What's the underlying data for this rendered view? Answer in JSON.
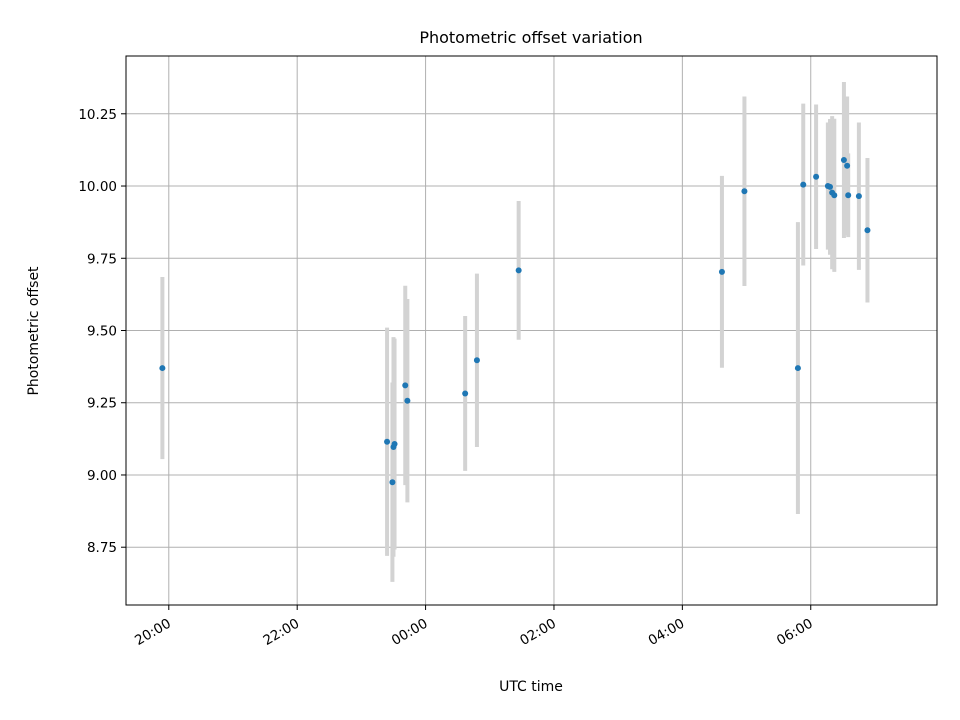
{
  "chart_data": {
    "type": "scatter",
    "title": "Photometric offset variation",
    "xlabel": "UTC time",
    "ylabel": "Photometric offset",
    "grid": true,
    "error_bars": true,
    "x_axis": {
      "kind": "time",
      "range": [
        "19:20",
        "07:58"
      ],
      "ticks": [
        "20:00",
        "22:00",
        "00:00",
        "02:00",
        "04:00",
        "06:00"
      ]
    },
    "y_axis": {
      "range": [
        8.55,
        10.45
      ],
      "ticks": [
        "8.75",
        "9.00",
        "9.25",
        "9.50",
        "9.75",
        "10.00",
        "10.25"
      ]
    },
    "colors": {
      "point": "#1f77b4",
      "error_bar": "#d3d3d3",
      "grid": "#b0b0b0"
    },
    "points": [
      {
        "x": "19:54",
        "y": 9.37,
        "err": 0.315
      },
      {
        "x": "23:24",
        "y": 9.115,
        "err": 0.395
      },
      {
        "x": "23:29",
        "y": 8.975,
        "err": 0.345
      },
      {
        "x": "23:30",
        "y": 9.097,
        "err": 0.38
      },
      {
        "x": "23:31",
        "y": 9.107,
        "err": 0.365
      },
      {
        "x": "23:41",
        "y": 9.31,
        "err": 0.345
      },
      {
        "x": "23:43",
        "y": 9.257,
        "err": 0.352
      },
      {
        "x": "00:37",
        "y": 9.282,
        "err": 0.268
      },
      {
        "x": "00:48",
        "y": 9.397,
        "err": 0.3
      },
      {
        "x": "01:27",
        "y": 9.708,
        "err": 0.24
      },
      {
        "x": "04:37",
        "y": 9.703,
        "err": 0.332
      },
      {
        "x": "04:58",
        "y": 9.982,
        "err": 0.328
      },
      {
        "x": "05:48",
        "y": 9.37,
        "err": 0.505
      },
      {
        "x": "05:53",
        "y": 10.005,
        "err": 0.28
      },
      {
        "x": "06:05",
        "y": 10.032,
        "err": 0.25
      },
      {
        "x": "06:16",
        "y": 10.0,
        "err": 0.22
      },
      {
        "x": "06:18",
        "y": 9.997,
        "err": 0.235
      },
      {
        "x": "06:20",
        "y": 9.977,
        "err": 0.265
      },
      {
        "x": "06:22",
        "y": 9.968,
        "err": 0.265
      },
      {
        "x": "06:31",
        "y": 10.09,
        "err": 0.27
      },
      {
        "x": "06:34",
        "y": 10.07,
        "err": 0.24
      },
      {
        "x": "06:35",
        "y": 9.968,
        "err": 0.145
      },
      {
        "x": "06:45",
        "y": 9.965,
        "err": 0.255
      },
      {
        "x": "06:53",
        "y": 9.847,
        "err": 0.25
      }
    ]
  }
}
